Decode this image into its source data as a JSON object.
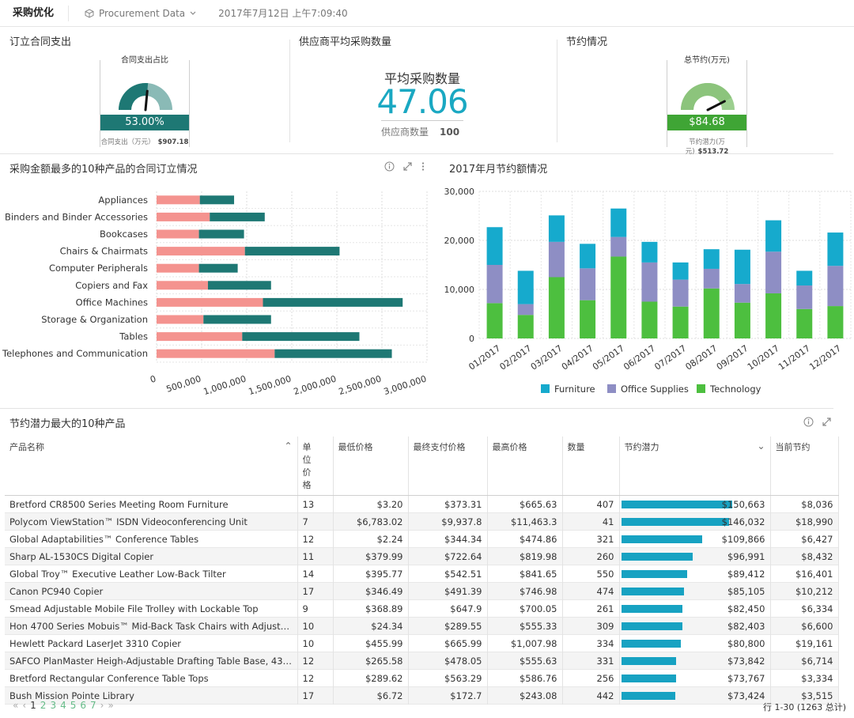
{
  "header": {
    "app_title": "采购优化",
    "datasource": "Procurement Data",
    "timestamp": "2017年7月12日 上午7:09:40"
  },
  "kpi": {
    "contract": {
      "title": "订立合同支出",
      "gauge_title": "合同支出占比",
      "value": "53.00%",
      "percent": 53,
      "foot_label": "合同支出（万元）",
      "foot_value": "$907.18",
      "color": "#1e7874"
    },
    "supplier": {
      "title": "供应商平均采购数量",
      "metric_title": "平均采购数量",
      "value": "47.06",
      "foot_label": "供应商数量",
      "foot_value": "100"
    },
    "savings": {
      "title": "节约情况",
      "gauge_title": "总节约(万元)",
      "value": "$84.68",
      "percent": 85,
      "foot_label": "节约潜力(万元)",
      "foot_value": "$513.72",
      "color": "#3fa535"
    }
  },
  "top10_panel": {
    "title": "采购金额最多的10种产品的合同订立情况"
  },
  "monthly_panel": {
    "title": "2017年月节约额情况"
  },
  "chart_data": [
    {
      "type": "bar",
      "orientation": "horizontal",
      "stacked": true,
      "categories": [
        "Appliances",
        "Binders and Binder Accessories",
        "Bookcases",
        "Chairs & Chairmats",
        "Computer Peripherals",
        "Copiers and Fax",
        "Office Machines",
        "Storage & Organization",
        "Tables",
        "Telephones and Communication"
      ],
      "series": [
        {
          "values": [
            480000,
            590000,
            470000,
            980000,
            470000,
            570000,
            1180000,
            520000,
            950000,
            1310000
          ],
          "color": "#f4938f"
        },
        {
          "values": [
            380000,
            610000,
            500000,
            1050000,
            430000,
            700000,
            1550000,
            750000,
            1300000,
            1300000
          ],
          "color": "#1e7874"
        }
      ],
      "xlim": [
        0,
        3000000
      ],
      "x_ticks": [
        "0",
        "500,000",
        "1,000,000",
        "1,500,000",
        "2,000,000",
        "2,500,000",
        "3,000,000"
      ]
    },
    {
      "type": "bar",
      "stacked": true,
      "categories": [
        "01/2017",
        "02/2017",
        "03/2017",
        "04/2017",
        "05/2017",
        "06/2017",
        "07/2017",
        "08/2017",
        "09/2017",
        "10/2017",
        "11/2017",
        "12/2017"
      ],
      "series": [
        {
          "name": "Technology",
          "values": [
            7200,
            4800,
            12500,
            7800,
            16700,
            7500,
            6500,
            10200,
            7300,
            9200,
            6000,
            6600
          ],
          "color": "#4dbf3f"
        },
        {
          "name": "Office Supplies",
          "values": [
            7800,
            2200,
            7200,
            6500,
            4000,
            8000,
            5500,
            4000,
            3800,
            8500,
            4800,
            8200
          ],
          "color": "#8e8ec4"
        },
        {
          "name": "Furniture",
          "values": [
            7700,
            6800,
            5400,
            5000,
            5800,
            4200,
            3500,
            4000,
            7000,
            6400,
            3000,
            6800
          ],
          "color": "#16aacd"
        }
      ],
      "ylim": [
        0,
        30000
      ],
      "y_ticks": [
        "0",
        "10,000",
        "20,000",
        "30,000"
      ],
      "legend": [
        "Furniture",
        "Office Supplies",
        "Technology"
      ],
      "legend_position": "bottom"
    }
  ],
  "table": {
    "title": "节约潜力最大的10种产品",
    "columns": [
      "产品名称",
      "单位价格",
      "最低价格",
      "最终支付价格",
      "最高价格",
      "数量",
      "节约潜力",
      "当前节约"
    ],
    "rows": [
      [
        "Bretford CR8500 Series Meeting Room Furniture",
        "13",
        "$3.20",
        "$373.31",
        "$665.63",
        "407",
        "$150,663",
        "$8,036"
      ],
      [
        "Polycom ViewStation™ ISDN Videoconferencing Unit",
        "7",
        "$6,783.02",
        "$9,937.8",
        "$11,463.3",
        "41",
        "$146,032",
        "$18,990"
      ],
      [
        "Global Adaptabilities™ Conference Tables",
        "12",
        "$2.24",
        "$344.34",
        "$474.86",
        "321",
        "$109,866",
        "$6,427"
      ],
      [
        "Sharp AL-1530CS Digital Copier",
        "11",
        "$379.99",
        "$722.64",
        "$819.98",
        "260",
        "$96,991",
        "$8,432"
      ],
      [
        "Global Troy™ Executive Leather Low-Back Tilter",
        "14",
        "$395.77",
        "$542.51",
        "$841.65",
        "550",
        "$89,412",
        "$16,401"
      ],
      [
        "Canon PC940 Copier",
        "17",
        "$346.49",
        "$491.39",
        "$746.98",
        "474",
        "$85,105",
        "$10,212"
      ],
      [
        "Smead Adjustable Mobile File Trolley with Lockable Top",
        "9",
        "$368.89",
        "$647.9",
        "$700.05",
        "261",
        "$82,450",
        "$6,334"
      ],
      [
        "Hon 4700 Series Mobuis™ Mid-Back Task Chairs with Adjustable ...",
        "10",
        "$24.34",
        "$289.55",
        "$555.33",
        "309",
        "$82,403",
        "$6,600"
      ],
      [
        "Hewlett Packard LaserJet 3310 Copier",
        "10",
        "$455.99",
        "$665.99",
        "$1,007.98",
        "334",
        "$80,800",
        "$19,161"
      ],
      [
        "SAFCO PlanMaster Heigh-Adjustable Drafting Table Base, 43w x ...",
        "12",
        "$265.58",
        "$478.05",
        "$555.63",
        "331",
        "$73,842",
        "$6,714"
      ],
      [
        "Bretford Rectangular Conference Table Tops",
        "12",
        "$289.62",
        "$563.29",
        "$586.76",
        "256",
        "$73,767",
        "$3,334"
      ],
      [
        "Bush Mission Pointe Library",
        "17",
        "$6.72",
        "$172.7",
        "$243.08",
        "442",
        "$73,424",
        "$3,515"
      ]
    ],
    "potential_max": 150663,
    "pager": {
      "first": "«",
      "prev": "‹",
      "pages": [
        "1",
        "2",
        "3",
        "4",
        "5",
        "6",
        "7"
      ],
      "next": "›",
      "last": "»"
    },
    "row_info": "行 1-30 (1263 总计)"
  }
}
